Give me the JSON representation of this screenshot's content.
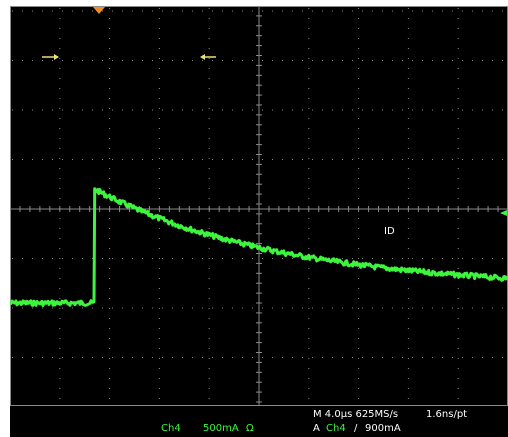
{
  "screen": {
    "background": "#000000",
    "grid_color": "#8a8a8a",
    "trace_color": "#3cf53c",
    "trigger_marker_color": "#f28c28",
    "cursor_color": "#e8e07a"
  },
  "annotation": {
    "text": "ID"
  },
  "status_bar": {
    "timebase": "M 4.0µs 625MS/s",
    "resolution": "1.6ns/pt",
    "channel": "Ch4",
    "scale": "500mA",
    "impedance": "Ω",
    "trigger_prefix": "A",
    "trigger_channel": "Ch4",
    "trigger_slope": "/",
    "trigger_level": "900mA"
  },
  "icons": {
    "trigger_position": "trigger-position-icon",
    "cursor_left": "cursor-arrow-right-icon",
    "cursor_right": "cursor-arrow-left-icon",
    "channel_ground": "ground-level-icon"
  },
  "waveform": {
    "description_units": "divisions",
    "baseline_level_div": -1.9,
    "step_time_div": -3.3,
    "peak_level_div": 0.4,
    "end_level_div": -1.4
  }
}
